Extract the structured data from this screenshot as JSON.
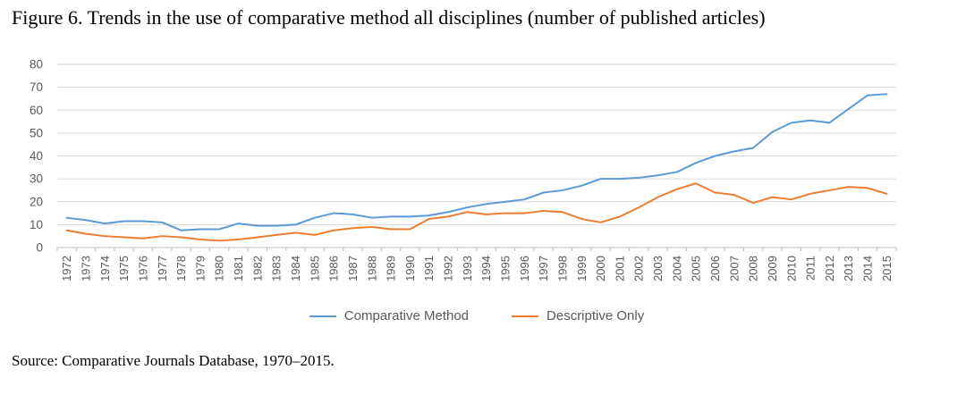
{
  "chart_data": {
    "type": "line",
    "title": "Figure 6. Trends in the use of comparative method all disciplines (number of published articles)",
    "source_note": "Source: Comparative Journals Database, 1970–2015.",
    "categories": [
      "1972",
      "1973",
      "1974",
      "1975",
      "1976",
      "1977",
      "1978",
      "1979",
      "1980",
      "1981",
      "1982",
      "1983",
      "1984",
      "1985",
      "1986",
      "1987",
      "1988",
      "1989",
      "1990",
      "1991",
      "1992",
      "1993",
      "1994",
      "1995",
      "1996",
      "1997",
      "1998",
      "1999",
      "2000",
      "2001",
      "2002",
      "2003",
      "2004",
      "2005",
      "2006",
      "2007",
      "2008",
      "2009",
      "2010",
      "2011",
      "2012",
      "2013",
      "2014",
      "2015"
    ],
    "series": [
      {
        "name": "Comparative Method",
        "color": "#5B9BD5",
        "values": [
          13,
          12,
          10.5,
          11.5,
          11.5,
          11,
          7.5,
          8,
          8,
          10.5,
          9.5,
          9.5,
          10,
          13,
          15,
          14.5,
          13,
          13.5,
          13.5,
          14,
          15.5,
          17.5,
          19,
          20,
          21,
          24,
          25,
          27,
          30,
          30,
          30.5,
          31.5,
          33,
          37,
          40,
          42,
          43.5,
          50.5,
          54.5,
          55.5,
          54.5,
          60.5,
          66.5,
          67
        ]
      },
      {
        "name": "Descriptive Only",
        "color": "#ED7D31",
        "values": [
          7.5,
          6,
          5,
          4.5,
          4,
          5,
          4.5,
          3.5,
          3,
          3.5,
          4.5,
          5.5,
          6.5,
          5.5,
          7.5,
          8.5,
          9,
          8,
          8,
          12.5,
          13.5,
          15.5,
          14.5,
          15,
          15,
          16,
          15.5,
          12.5,
          11,
          13.5,
          17.5,
          22,
          25.5,
          28,
          24,
          23,
          19.5,
          22,
          21,
          23.5,
          25,
          26.5,
          26,
          23.5
        ]
      }
    ],
    "xlabel": "",
    "ylabel": "",
    "ylim": [
      0,
      80
    ],
    "yticks": [
      0,
      10,
      20,
      30,
      40,
      50,
      60,
      70,
      80
    ],
    "grid": "horizontal",
    "legend_position": "bottom",
    "gridline_color": "#D9D9D9",
    "axis_color": "#BFBFBF",
    "tick_label_color": "#595959"
  }
}
